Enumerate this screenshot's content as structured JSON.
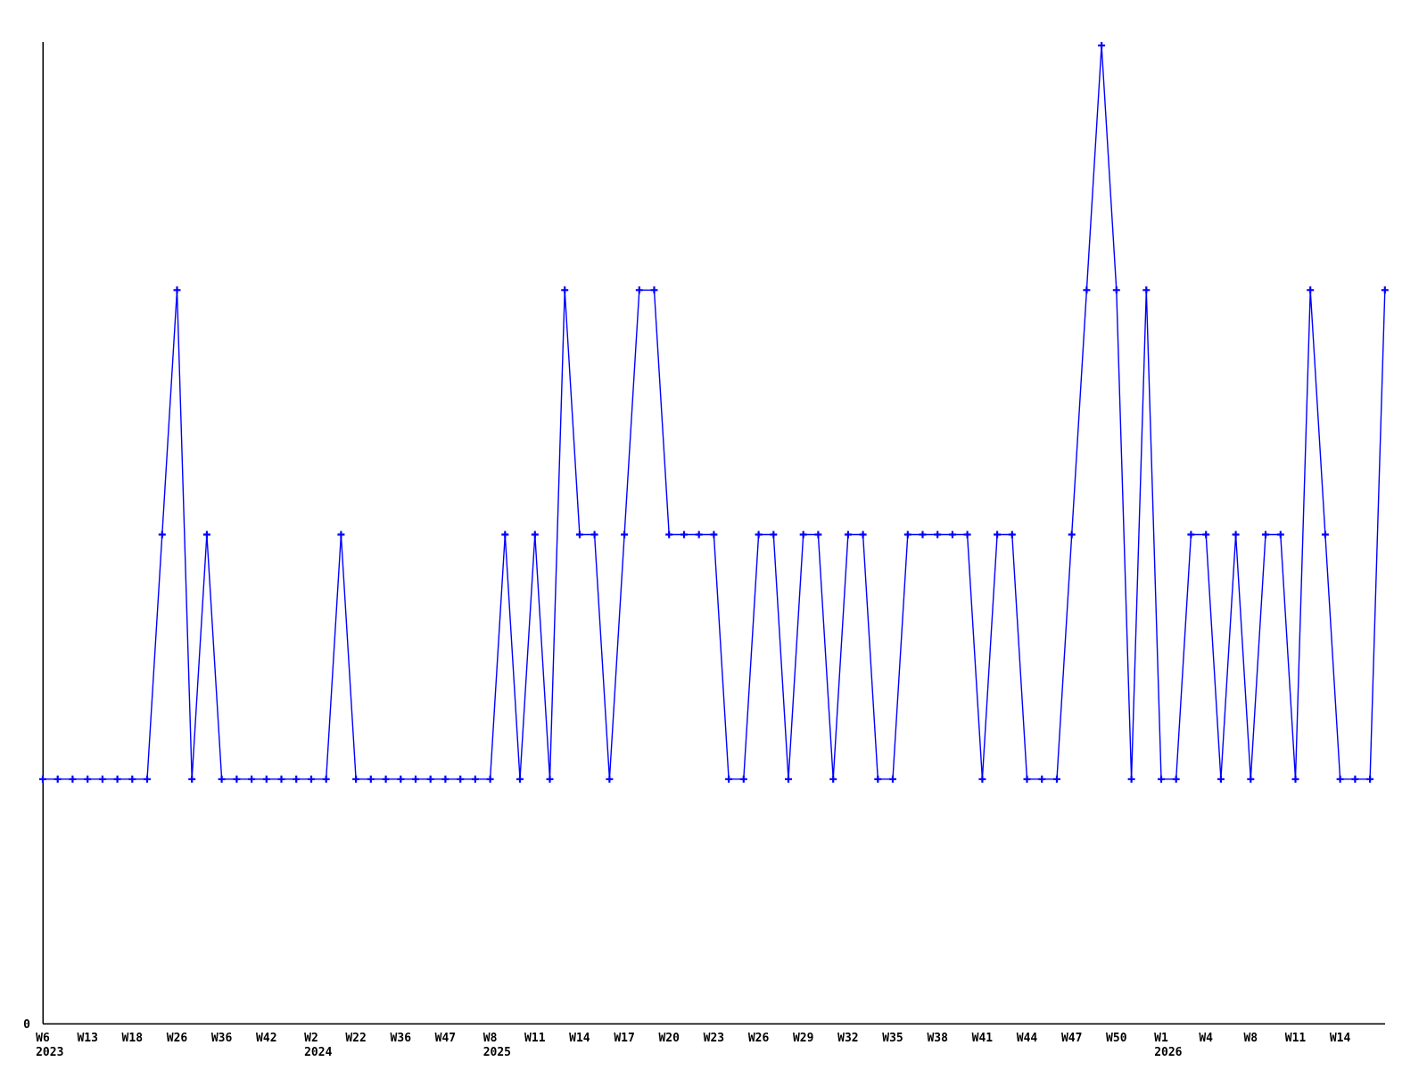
{
  "chart_data": {
    "type": "line",
    "title": "",
    "xlabel": "",
    "ylabel": "",
    "grid": false,
    "legend": null,
    "x_axis": {
      "tick_labels": [
        "W6",
        "W13",
        "W18",
        "W26",
        "W36",
        "W42",
        "W2",
        "W22",
        "W36",
        "W47",
        "W8",
        "W11",
        "W14",
        "W17",
        "W20",
        "W23",
        "W26",
        "W29",
        "W32",
        "W35",
        "W38",
        "W41",
        "W44",
        "W47",
        "W50",
        "W1",
        "W4",
        "W8",
        "W11",
        "W14"
      ],
      "year_labels": [
        {
          "tick_index": 0,
          "label": "2023"
        },
        {
          "tick_index": 6,
          "label": "2024"
        },
        {
          "tick_index": 10,
          "label": "2025"
        },
        {
          "tick_index": 25,
          "label": "2026"
        }
      ],
      "ticks_every_n_points": 3
    },
    "y_axis": {
      "tick_labels": [
        "0"
      ],
      "ylim": [
        0,
        4.02
      ]
    },
    "values": [
      1,
      1,
      1,
      1,
      1,
      1,
      1,
      1,
      2,
      3,
      1,
      2,
      1,
      1,
      1,
      1,
      1,
      1,
      1,
      1,
      2,
      1,
      1,
      1,
      1,
      1,
      1,
      1,
      1,
      1,
      1,
      2,
      1,
      2,
      1,
      3,
      2,
      2,
      1,
      2,
      3,
      3,
      2,
      2,
      2,
      2,
      1,
      1,
      2,
      2,
      1,
      2,
      2,
      1,
      2,
      2,
      1,
      1,
      2,
      2,
      2,
      2,
      2,
      1,
      2,
      2,
      1,
      1,
      1,
      2,
      3,
      4,
      3,
      1,
      3,
      1,
      1,
      2,
      2,
      1,
      2,
      1,
      2,
      2,
      1,
      3,
      2,
      1,
      1,
      1,
      3
    ],
    "marker_style": "plus",
    "colors": {
      "line": "#0000ff",
      "marker": "#0000ff",
      "axis": "#000000",
      "background": "#ffffff",
      "text": "#000000"
    }
  }
}
